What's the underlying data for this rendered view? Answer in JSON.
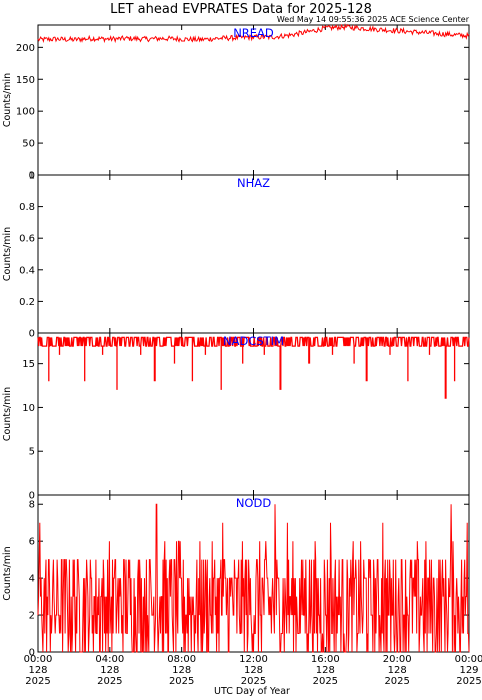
{
  "title": "LET ahead EVPRATES Data for 2025-128",
  "timestamp": "Wed May 14 09:55:36 2025 ACE Science Center",
  "xlabel": "UTC Day of Year",
  "line_color": "#ff0000",
  "panel_label_color": "#0000ff",
  "x_ticks": [
    {
      "time": "00:00",
      "day": "128",
      "year": "2025",
      "hour": 0
    },
    {
      "time": "04:00",
      "day": "128",
      "year": "2025",
      "hour": 4
    },
    {
      "time": "08:00",
      "day": "128",
      "year": "2025",
      "hour": 8
    },
    {
      "time": "12:00",
      "day": "128",
      "year": "2025",
      "hour": 12
    },
    {
      "time": "16:00",
      "day": "128",
      "year": "2025",
      "hour": 16
    },
    {
      "time": "20:00",
      "day": "128",
      "year": "2025",
      "hour": 20
    },
    {
      "time": "00:00",
      "day": "129",
      "year": "2025",
      "hour": 24
    }
  ],
  "chart_data": [
    {
      "type": "line",
      "label": "NREAD",
      "ylabel": "Counts/min",
      "xlim": [
        0,
        24
      ],
      "ylim": [
        0,
        235
      ],
      "yticks": [
        0,
        50,
        100,
        150,
        200
      ],
      "x": [
        0,
        1,
        2,
        3,
        4,
        5,
        6,
        7,
        8,
        9,
        10,
        11,
        12,
        13,
        14,
        15,
        16,
        17,
        18,
        19,
        20,
        21,
        22,
        23,
        24
      ],
      "values": [
        212,
        213,
        212,
        214,
        213,
        214,
        213,
        214,
        213,
        212,
        214,
        215,
        216,
        216,
        219,
        224,
        230,
        232,
        230,
        228,
        226,
        224,
        222,
        220,
        218
      ]
    },
    {
      "type": "line",
      "label": "NHAZ",
      "ylabel": "Counts/min",
      "xlim": [
        0,
        24
      ],
      "ylim": [
        0,
        1
      ],
      "yticks": [
        0.0,
        0.2,
        0.4,
        0.6,
        0.8,
        1.0
      ],
      "x": [
        0,
        24
      ],
      "values": [
        0,
        0
      ]
    },
    {
      "type": "line",
      "label": "NADCSTIM",
      "ylabel": "Counts/min",
      "xlim": [
        0,
        24
      ],
      "ylim": [
        0,
        18.5
      ],
      "yticks": [
        0,
        5,
        10,
        15
      ],
      "typical_range": [
        17,
        18
      ],
      "dips": [
        {
          "x": 0.6,
          "value": 13
        },
        {
          "x": 1.2,
          "value": 16
        },
        {
          "x": 2.6,
          "value": 13
        },
        {
          "x": 3.6,
          "value": 16
        },
        {
          "x": 4.4,
          "value": 12
        },
        {
          "x": 5.7,
          "value": 16
        },
        {
          "x": 6.5,
          "value": 13
        },
        {
          "x": 7.6,
          "value": 15
        },
        {
          "x": 8.6,
          "value": 13
        },
        {
          "x": 9.3,
          "value": 16
        },
        {
          "x": 10.2,
          "value": 12
        },
        {
          "x": 11.4,
          "value": 15
        },
        {
          "x": 12.6,
          "value": 16
        },
        {
          "x": 13.5,
          "value": 12
        },
        {
          "x": 15.1,
          "value": 15
        },
        {
          "x": 16.4,
          "value": 16
        },
        {
          "x": 17.6,
          "value": 15
        },
        {
          "x": 18.3,
          "value": 13
        },
        {
          "x": 19.6,
          "value": 16
        },
        {
          "x": 20.6,
          "value": 13
        },
        {
          "x": 21.8,
          "value": 16
        },
        {
          "x": 22.7,
          "value": 11
        },
        {
          "x": 23.2,
          "value": 13
        }
      ]
    },
    {
      "type": "line",
      "label": "NODD",
      "ylabel": "Counts/min",
      "xlim": [
        0,
        24
      ],
      "ylim": [
        0,
        8.5
      ],
      "yticks": [
        0,
        2,
        4,
        6,
        8
      ],
      "typical_range": [
        0,
        5
      ],
      "peaks": [
        {
          "x": 0.1,
          "value": 7
        },
        {
          "x": 6.6,
          "value": 8
        },
        {
          "x": 10.3,
          "value": 7
        },
        {
          "x": 13.2,
          "value": 8
        },
        {
          "x": 13.9,
          "value": 7
        },
        {
          "x": 16.3,
          "value": 7
        },
        {
          "x": 19.2,
          "value": 7
        },
        {
          "x": 23.0,
          "value": 8
        },
        {
          "x": 23.9,
          "value": 7
        }
      ]
    }
  ]
}
